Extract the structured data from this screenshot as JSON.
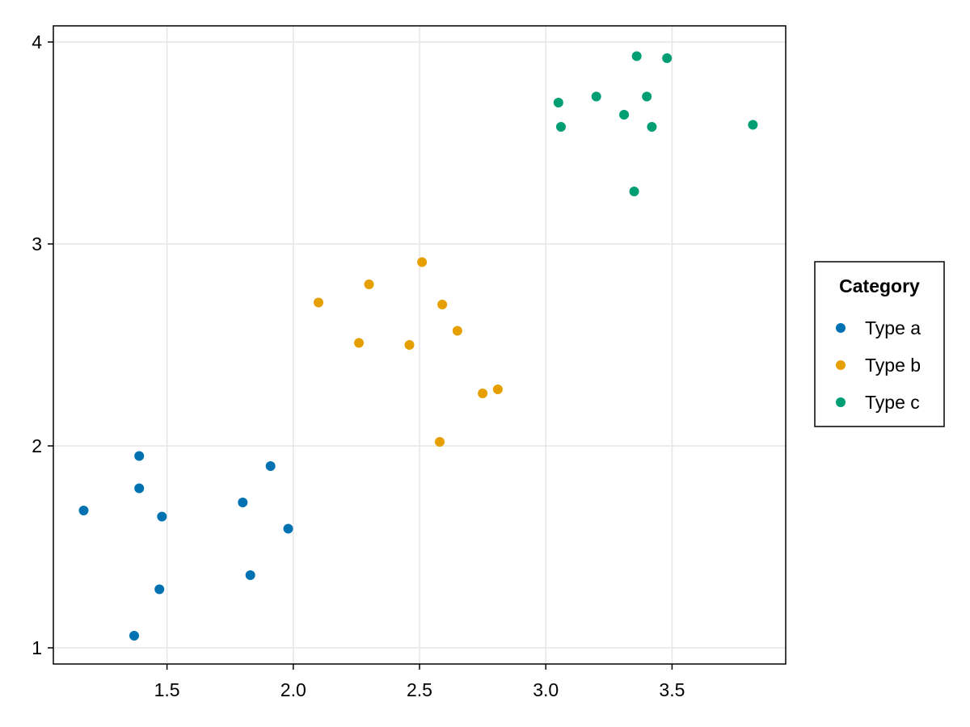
{
  "chart_data": {
    "type": "scatter",
    "title": "",
    "xlabel": "",
    "ylabel": "",
    "xlim": [
      1.05,
      3.95
    ],
    "ylim": [
      0.92,
      4.08
    ],
    "x_ticks": [
      1.5,
      2.0,
      2.5,
      3.0,
      3.5
    ],
    "x_tick_labels": [
      "1.5",
      "2.0",
      "2.5",
      "3.0",
      "3.5"
    ],
    "y_ticks": [
      1,
      2,
      3,
      4
    ],
    "y_tick_labels": [
      "1",
      "2",
      "3",
      "4"
    ],
    "grid": true,
    "legend": {
      "title": "Category",
      "placement": "right"
    },
    "series": [
      {
        "name": "Type a",
        "color": "#0072b2",
        "points": [
          {
            "x": 1.17,
            "y": 1.68
          },
          {
            "x": 1.37,
            "y": 1.06
          },
          {
            "x": 1.39,
            "y": 1.79
          },
          {
            "x": 1.39,
            "y": 1.95
          },
          {
            "x": 1.47,
            "y": 1.29
          },
          {
            "x": 1.48,
            "y": 1.65
          },
          {
            "x": 1.8,
            "y": 1.72
          },
          {
            "x": 1.83,
            "y": 1.36
          },
          {
            "x": 1.91,
            "y": 1.9
          },
          {
            "x": 1.98,
            "y": 1.59
          }
        ]
      },
      {
        "name": "Type b",
        "color": "#e69f00",
        "points": [
          {
            "x": 2.1,
            "y": 2.71
          },
          {
            "x": 2.26,
            "y": 2.51
          },
          {
            "x": 2.3,
            "y": 2.8
          },
          {
            "x": 2.46,
            "y": 2.5
          },
          {
            "x": 2.51,
            "y": 2.91
          },
          {
            "x": 2.58,
            "y": 2.02
          },
          {
            "x": 2.59,
            "y": 2.7
          },
          {
            "x": 2.65,
            "y": 2.57
          },
          {
            "x": 2.75,
            "y": 2.26
          },
          {
            "x": 2.81,
            "y": 2.28
          }
        ]
      },
      {
        "name": "Type c",
        "color": "#009e73",
        "points": [
          {
            "x": 3.05,
            "y": 3.7
          },
          {
            "x": 3.06,
            "y": 3.58
          },
          {
            "x": 3.2,
            "y": 3.73
          },
          {
            "x": 3.31,
            "y": 3.64
          },
          {
            "x": 3.35,
            "y": 3.26
          },
          {
            "x": 3.36,
            "y": 3.93
          },
          {
            "x": 3.4,
            "y": 3.73
          },
          {
            "x": 3.42,
            "y": 3.58
          },
          {
            "x": 3.48,
            "y": 3.92
          },
          {
            "x": 3.82,
            "y": 3.59
          }
        ]
      }
    ]
  }
}
